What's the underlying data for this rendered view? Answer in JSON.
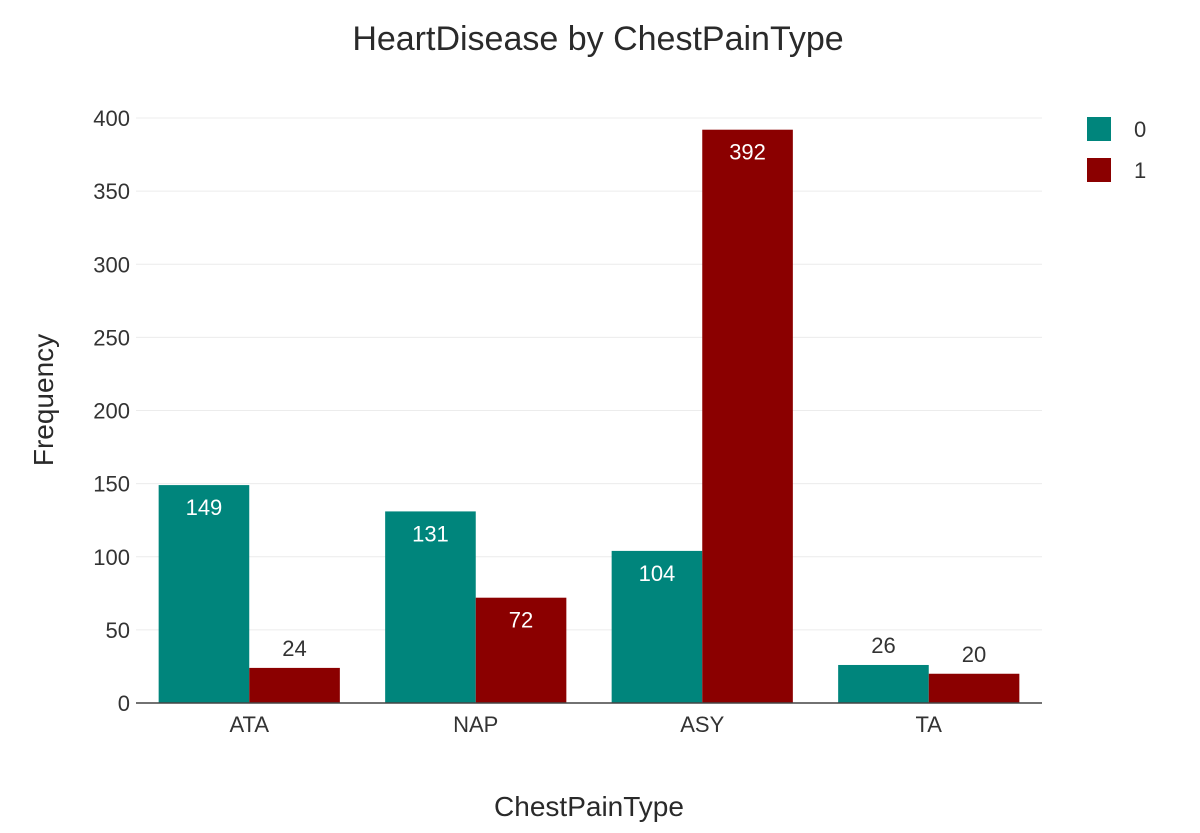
{
  "chart_data": {
    "type": "bar",
    "title": "HeartDisease by ChestPainType",
    "xlabel": "ChestPainType",
    "ylabel": "Frequency",
    "categories": [
      "ATA",
      "NAP",
      "ASY",
      "TA"
    ],
    "series": [
      {
        "name": "0",
        "values": [
          149,
          131,
          104,
          26
        ],
        "color": "#00857C"
      },
      {
        "name": "1",
        "values": [
          24,
          72,
          392,
          20
        ],
        "color": "#8B0000"
      }
    ],
    "ylim": [
      0,
      400
    ],
    "yticks": [
      0,
      50,
      100,
      150,
      200,
      250,
      300,
      350,
      400
    ],
    "grid": true,
    "legend_position": "top-right",
    "bar_label_inside_min": 60
  }
}
